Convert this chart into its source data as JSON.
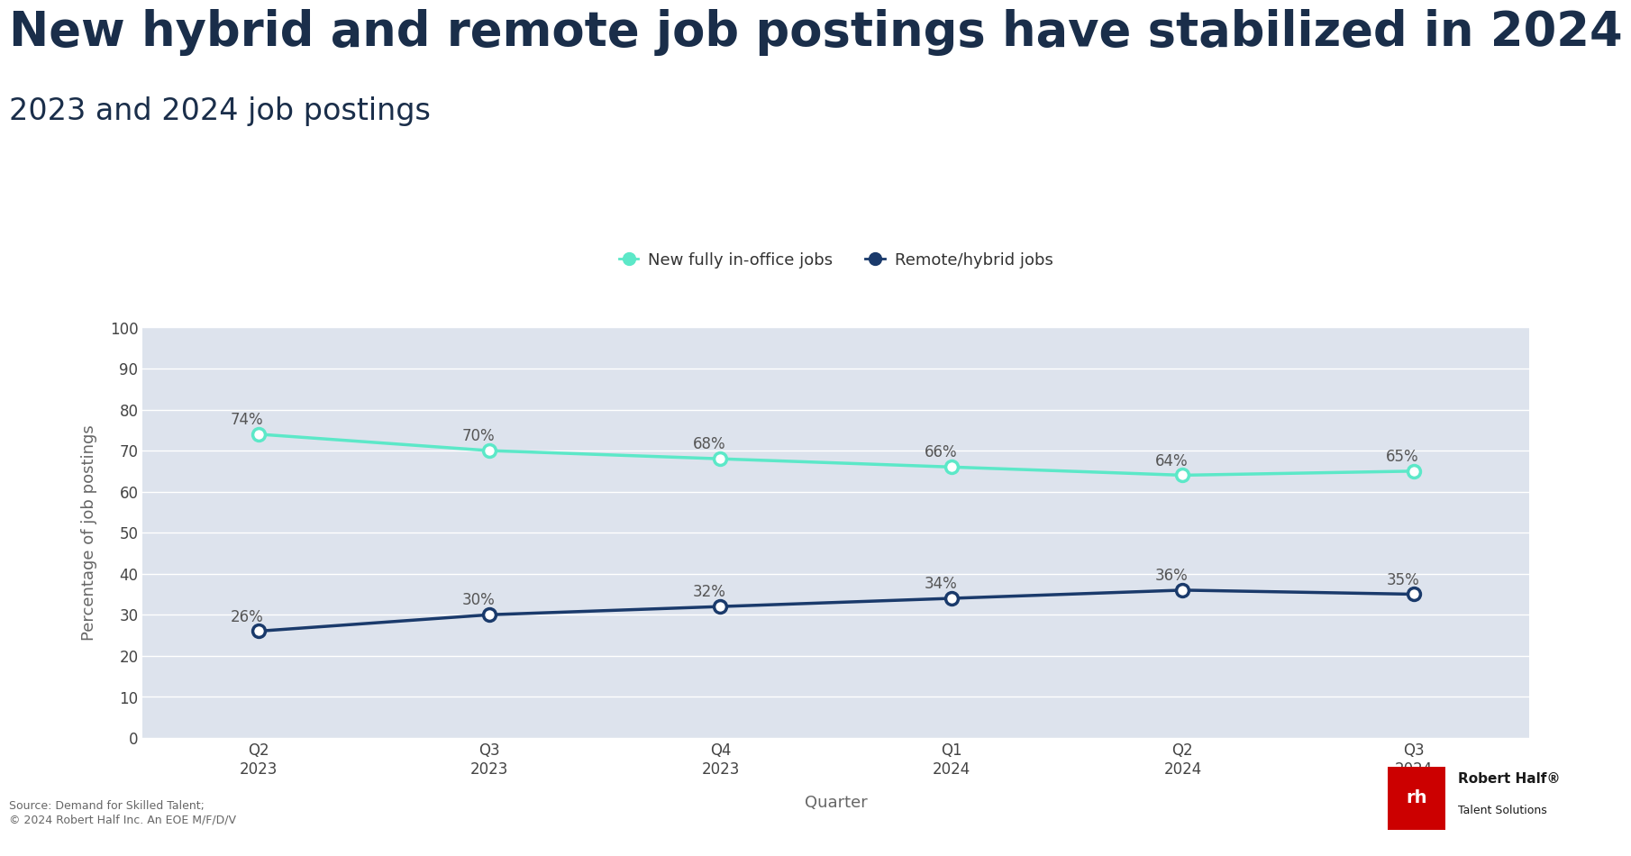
{
  "title": "New hybrid and remote job postings have stabilized in 2024",
  "subtitle": "2023 and 2024 job postings",
  "xlabel": "Quarter",
  "ylabel": "Percentage of job postings",
  "categories": [
    "Q2\n2023",
    "Q3\n2023",
    "Q4\n2023",
    "Q1\n2024",
    "Q2\n2024",
    "Q3\n2024"
  ],
  "in_office_values": [
    74,
    70,
    68,
    66,
    64,
    65
  ],
  "remote_values": [
    26,
    30,
    32,
    34,
    36,
    35
  ],
  "in_office_label": "New fully in-office jobs",
  "remote_label": "Remote/hybrid jobs",
  "in_office_color": "#5ce8c8",
  "remote_color": "#1a3a6b",
  "background_color": "#ffffff",
  "plot_bg_color": "#dde3ed",
  "grid_color": "#ffffff",
  "title_color": "#1a2e4a",
  "subtitle_color": "#1a2e4a",
  "label_color": "#666666",
  "annotation_color": "#555555",
  "ylim": [
    0,
    100
  ],
  "yticks": [
    0,
    10,
    20,
    30,
    40,
    50,
    60,
    70,
    80,
    90,
    100
  ],
  "source_text": "Source: Demand for Skilled Talent;\n© 2024 Robert Half Inc. An EOE M/F/D/V",
  "title_fontsize": 38,
  "subtitle_fontsize": 24,
  "axis_label_fontsize": 13,
  "tick_fontsize": 12,
  "legend_fontsize": 13,
  "annotation_fontsize": 12,
  "source_fontsize": 9
}
